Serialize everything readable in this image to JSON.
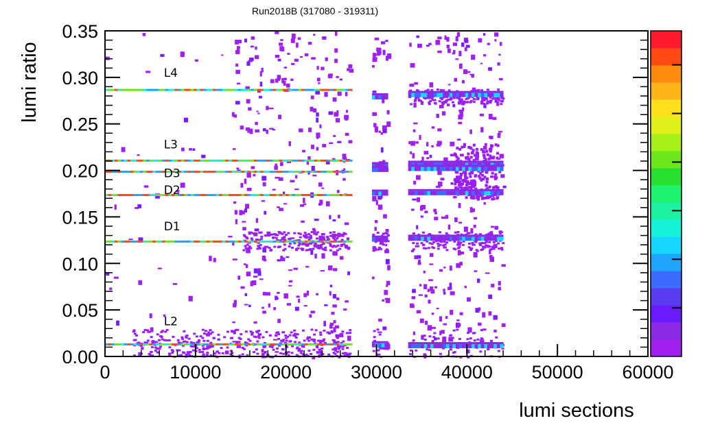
{
  "chart_data": {
    "type": "heatmap",
    "title": "Run2018B (317080 - 319311)",
    "xlabel": "lumi sections",
    "ylabel": "lumi ratio",
    "xlim": [
      0,
      60000
    ],
    "ylim": [
      0,
      0.35
    ],
    "xticks": [
      "0",
      "10000",
      "20000",
      "30000",
      "40000",
      "50000",
      "60000"
    ],
    "yticks": [
      "0.00",
      "0.05",
      "0.10",
      "0.15",
      "0.20",
      "0.25",
      "0.30",
      "0.35"
    ],
    "grid": false,
    "colorbar": true,
    "palette": [
      "#a020f0",
      "#8a2ae6",
      "#6a1bff",
      "#5a3cf0",
      "#3b6cff",
      "#1fa5ff",
      "#16d6ff",
      "#16f2d8",
      "#1cf2a2",
      "#1ef270",
      "#28e030",
      "#6ee61c",
      "#a8f01a",
      "#dff01a",
      "#ffe01a",
      "#ffb41a",
      "#ff8a10",
      "#ff4a14",
      "#ff1a2e"
    ],
    "annotations": [
      {
        "text": "L4",
        "x": 6500,
        "y": 0.305
      },
      {
        "text": "L3",
        "x": 6500,
        "y": 0.228
      },
      {
        "text": "D3",
        "x": 6500,
        "y": 0.197
      },
      {
        "text": "D2",
        "x": 6500,
        "y": 0.179
      },
      {
        "text": "D1",
        "x": 6500,
        "y": 0.14
      },
      {
        "text": "L2",
        "x": 6500,
        "y": 0.038
      }
    ],
    "series": [
      {
        "label": "L4",
        "segments": [
          [
            0,
            27000,
            0.2865
          ],
          [
            29500,
            31200,
            0.2785
          ],
          [
            33500,
            44000,
            0.281
          ]
        ]
      },
      {
        "label": "L3",
        "segments": [
          [
            0,
            27000,
            0.2105
          ],
          [
            29500,
            31200,
            0.2045
          ],
          [
            33500,
            44000,
            0.206
          ]
        ]
      },
      {
        "label": "D3",
        "segments": [
          [
            0,
            27000,
            0.1985
          ],
          [
            29500,
            31200,
            0.2005
          ],
          [
            33500,
            44000,
            0.2015
          ]
        ]
      },
      {
        "label": "D2",
        "segments": [
          [
            0,
            27000,
            0.1735
          ],
          [
            29500,
            31200,
            0.175
          ],
          [
            33500,
            44000,
            0.1755
          ]
        ]
      },
      {
        "label": "D1",
        "segments": [
          [
            0,
            27000,
            0.1235
          ],
          [
            29500,
            31200,
            0.1255
          ],
          [
            33500,
            44000,
            0.1265
          ]
        ]
      },
      {
        "label": "L2",
        "segments": [
          [
            0,
            27000,
            0.013
          ],
          [
            29500,
            31200,
            0.012
          ],
          [
            33500,
            44000,
            0.011
          ]
        ]
      }
    ]
  }
}
